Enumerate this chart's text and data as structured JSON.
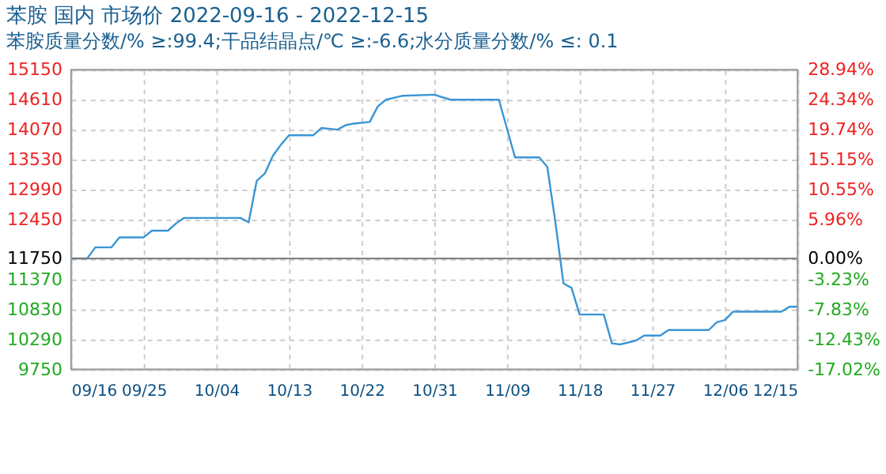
{
  "chart_data": {
    "type": "line",
    "title": "苯胺 国内 市场价 2022-09-16 - 2022-12-15",
    "subtitle": "苯胺质量分数/% ≥:99.4;干品结晶点/℃  ≥:-6.6;水分质量分数/%  ≤: 0.1",
    "x": [
      "2022-09-16",
      "2022-09-18",
      "2022-09-19",
      "2022-09-21",
      "2022-09-22",
      "2022-09-25",
      "2022-09-26",
      "2022-09-28",
      "2022-09-29",
      "2022-09-30",
      "2022-10-07",
      "2022-10-08",
      "2022-10-09",
      "2022-10-10",
      "2022-10-11",
      "2022-10-12",
      "2022-10-13",
      "2022-10-16",
      "2022-10-17",
      "2022-10-19",
      "2022-10-20",
      "2022-10-21",
      "2022-10-23",
      "2022-10-24",
      "2022-10-25",
      "2022-10-27",
      "2022-10-31",
      "2022-11-02",
      "2022-11-08",
      "2022-11-10",
      "2022-11-13",
      "2022-11-14",
      "2022-11-15",
      "2022-11-16",
      "2022-11-17",
      "2022-11-18",
      "2022-11-21",
      "2022-11-22",
      "2022-11-23",
      "2022-11-25",
      "2022-11-26",
      "2022-11-28",
      "2022-11-29",
      "2022-12-04",
      "2022-12-05",
      "2022-12-06",
      "2022-12-07",
      "2022-12-13",
      "2022-12-14",
      "2022-12-15"
    ],
    "series": [
      {
        "color": "#3a95d5",
        "values": [
          11750,
          11750,
          11950,
          11950,
          12130,
          12130,
          12250,
          12250,
          12380,
          12480,
          12480,
          12400,
          13150,
          13280,
          13600,
          13800,
          13970,
          13970,
          14100,
          14070,
          14150,
          14180,
          14210,
          14490,
          14610,
          14680,
          14700,
          14610,
          14610,
          13570,
          13570,
          13400,
          12400,
          11300,
          11220,
          10740,
          10740,
          10220,
          10200,
          10270,
          10360,
          10360,
          10460,
          10460,
          10600,
          10640,
          10790,
          10790,
          10880,
          10880
        ]
      }
    ],
    "xlim": [
      "2022-09-16",
      "2022-12-15"
    ],
    "xticks": [
      {
        "value": "2022-09-16",
        "label": "09/16"
      },
      {
        "value": "2022-09-25",
        "label": "09/25"
      },
      {
        "value": "2022-10-04",
        "label": "10/04"
      },
      {
        "value": "2022-10-13",
        "label": "10/13"
      },
      {
        "value": "2022-10-22",
        "label": "10/22"
      },
      {
        "value": "2022-10-31",
        "label": "10/31"
      },
      {
        "value": "2022-11-09",
        "label": "11/09"
      },
      {
        "value": "2022-11-18",
        "label": "11/18"
      },
      {
        "value": "2022-11-27",
        "label": "11/27"
      },
      {
        "value": "2022-12-06",
        "label": "12/06"
      },
      {
        "value": "2022-12-15",
        "label": "12/15"
      }
    ],
    "ylim": [
      9750,
      15150
    ],
    "yticks": [
      9750,
      10290,
      10830,
      11370,
      11750,
      12450,
      12990,
      13530,
      14070,
      14610,
      15150
    ],
    "y2lim": [
      -17.02,
      28.94
    ],
    "y2ticks": [
      {
        "value": -17.02,
        "label": "-17.02%"
      },
      {
        "value": -12.43,
        "label": "-12.43%"
      },
      {
        "value": -7.83,
        "label": "-7.83%"
      },
      {
        "value": -3.23,
        "label": "-3.23%"
      },
      {
        "value": 0,
        "label": "0.00%"
      },
      {
        "value": 5.96,
        "label": "5.96%"
      },
      {
        "value": 10.55,
        "label": "10.55%"
      },
      {
        "value": 15.15,
        "label": "15.15%"
      },
      {
        "value": 19.74,
        "label": "19.74%"
      },
      {
        "value": 24.34,
        "label": "24.34%"
      },
      {
        "value": 28.94,
        "label": "28.94%"
      }
    ],
    "ref_lines": [
      {
        "axis": "y2",
        "value": 0,
        "color": "#777777"
      }
    ],
    "grid": true,
    "marker": "none",
    "line_style": "solid"
  }
}
